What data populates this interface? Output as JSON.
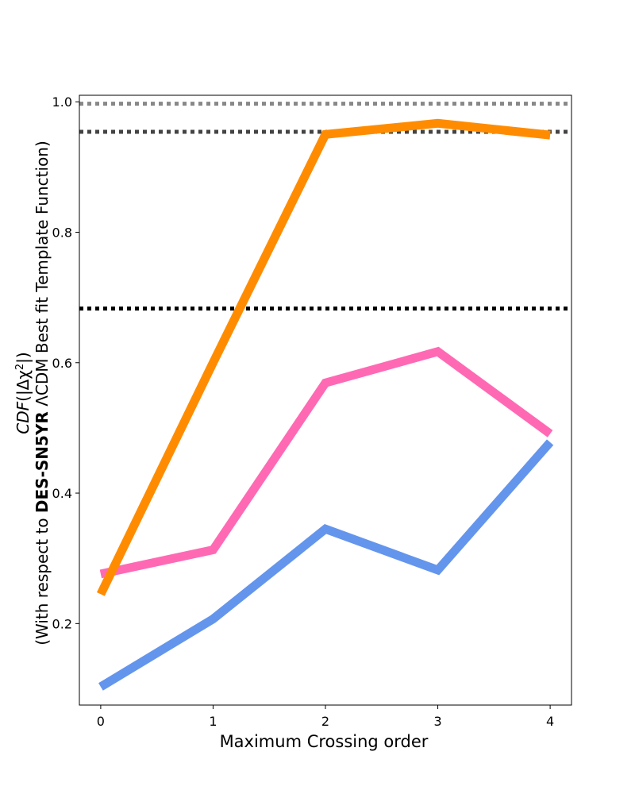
{
  "chart_data": {
    "type": "line",
    "xlabel": "Maximum Crossing order",
    "ylabel": {
      "line1": "CDF(|Δχ²|)",
      "line1_parts": {
        "func": "CDF",
        "open": "(|Δχ",
        "sup": "2",
        "close": "|)"
      },
      "line2_prefix": "(With respect to ",
      "line2_bold": "DES-SN5YR",
      "line2_suffix": " ΛCDM Best fit Template Function)"
    },
    "x": [
      0,
      1,
      2,
      3,
      4
    ],
    "xticks": [
      "0",
      "1",
      "2",
      "3",
      "4"
    ],
    "yticks": [
      "0.2",
      "0.4",
      "0.6",
      "0.8",
      "1.0"
    ],
    "xlim": [
      -0.19,
      4.19
    ],
    "ylim": [
      0.075,
      1.01
    ],
    "grid": false,
    "series": [
      {
        "color": "#6495ED",
        "values": [
          0.103,
          0.207,
          0.345,
          0.282,
          0.478
        ]
      },
      {
        "color": "#FF69B4",
        "values": [
          0.276,
          0.313,
          0.569,
          0.617,
          0.491
        ]
      },
      {
        "color": "#FF8C00",
        "values": [
          0.245,
          0.6,
          0.95,
          0.967,
          0.949
        ]
      }
    ],
    "reference_lines": [
      {
        "y": 0.683,
        "color": "#000000"
      },
      {
        "y": 0.954,
        "color": "#444444"
      },
      {
        "y": 0.997,
        "color": "#888888"
      }
    ]
  }
}
